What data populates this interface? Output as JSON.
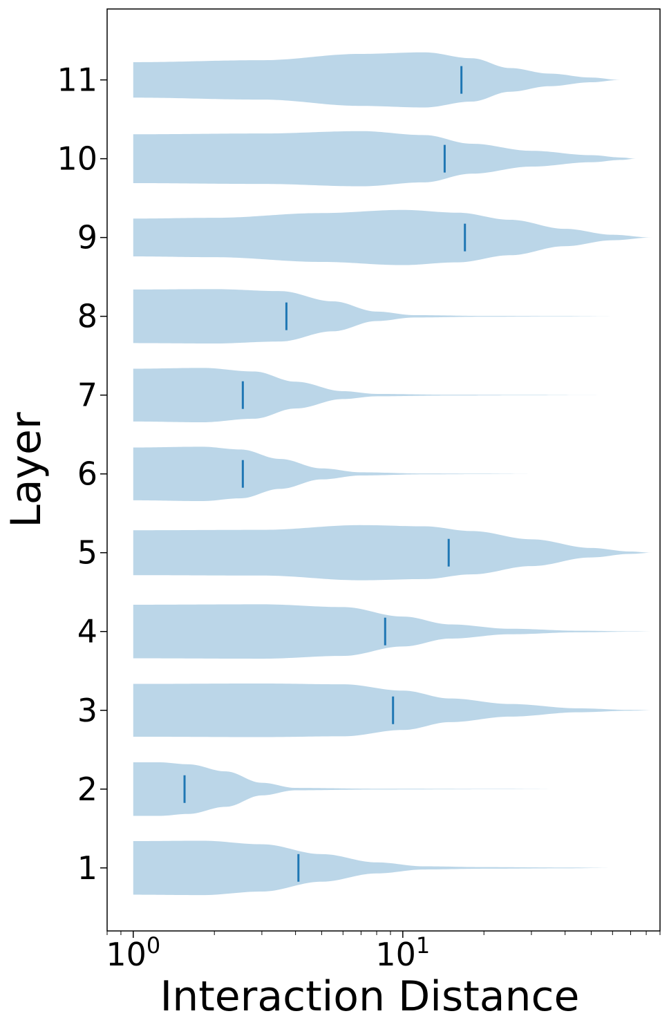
{
  "chart_data": {
    "type": "violin",
    "orientation": "horizontal",
    "xlabel": "Interaction Distance",
    "ylabel": "Layer",
    "xscale": "log",
    "xlim": [
      0.8,
      90
    ],
    "ylim": [
      0.2,
      11.9
    ],
    "x_ticks": [
      {
        "value": 1,
        "base": "10",
        "exp": "0"
      },
      {
        "value": 10,
        "base": "10",
        "exp": "1"
      }
    ],
    "y_ticks": [
      1,
      2,
      3,
      4,
      5,
      6,
      7,
      8,
      9,
      10,
      11
    ],
    "violin_color": "#1f77b4",
    "violin_opacity": 0.3,
    "median_color": "#1f77b4",
    "grid": false,
    "series": [
      {
        "layer": 1,
        "min": 1,
        "max": 61,
        "median": 4.1,
        "profile": [
          [
            1,
            0.68
          ],
          [
            1.8,
            0.69
          ],
          [
            3.0,
            0.6
          ],
          [
            5.0,
            0.35
          ],
          [
            8.0,
            0.14
          ],
          [
            12,
            0.04
          ],
          [
            20,
            0.02
          ],
          [
            40,
            0.01
          ],
          [
            61,
            0.0
          ]
        ]
      },
      {
        "layer": 2,
        "min": 1,
        "max": 42,
        "median": 1.55,
        "profile": [
          [
            1,
            0.68
          ],
          [
            1.25,
            0.68
          ],
          [
            1.6,
            0.63
          ],
          [
            2.2,
            0.45
          ],
          [
            3.0,
            0.16
          ],
          [
            4.0,
            0.03
          ],
          [
            8.0,
            0.01
          ],
          [
            20,
            0.005
          ],
          [
            42,
            0.0
          ]
        ]
      },
      {
        "layer": 3,
        "min": 1,
        "max": 85,
        "median": 9.2,
        "profile": [
          [
            1,
            0.67
          ],
          [
            3.0,
            0.68
          ],
          [
            6.0,
            0.66
          ],
          [
            10,
            0.5
          ],
          [
            15,
            0.3
          ],
          [
            25,
            0.16
          ],
          [
            45,
            0.05
          ],
          [
            70,
            0.01
          ],
          [
            85,
            0.0
          ]
        ]
      },
      {
        "layer": 4,
        "min": 1,
        "max": 85,
        "median": 8.6,
        "profile": [
          [
            1,
            0.68
          ],
          [
            3.0,
            0.69
          ],
          [
            6.0,
            0.62
          ],
          [
            10,
            0.38
          ],
          [
            15,
            0.18
          ],
          [
            25,
            0.07
          ],
          [
            45,
            0.02
          ],
          [
            70,
            0.005
          ],
          [
            85,
            0.0
          ]
        ]
      },
      {
        "layer": 5,
        "min": 1,
        "max": 84,
        "median": 14.8,
        "profile": [
          [
            1,
            0.57
          ],
          [
            3.0,
            0.58
          ],
          [
            7.0,
            0.7
          ],
          [
            12,
            0.67
          ],
          [
            18,
            0.55
          ],
          [
            30,
            0.34
          ],
          [
            50,
            0.12
          ],
          [
            70,
            0.03
          ],
          [
            84,
            0.0
          ]
        ]
      },
      {
        "layer": 6,
        "min": 1,
        "max": 31,
        "median": 2.55,
        "profile": [
          [
            1,
            0.67
          ],
          [
            1.8,
            0.69
          ],
          [
            2.5,
            0.62
          ],
          [
            3.5,
            0.38
          ],
          [
            5.0,
            0.14
          ],
          [
            7.0,
            0.04
          ],
          [
            12,
            0.01
          ],
          [
            20,
            0.005
          ],
          [
            31,
            0.0
          ]
        ]
      },
      {
        "layer": 7,
        "min": 1,
        "max": 53,
        "median": 2.55,
        "profile": [
          [
            1,
            0.67
          ],
          [
            1.8,
            0.69
          ],
          [
            2.8,
            0.6
          ],
          [
            4.0,
            0.34
          ],
          [
            6.0,
            0.1
          ],
          [
            8.0,
            0.03
          ],
          [
            15,
            0.01
          ],
          [
            30,
            0.005
          ],
          [
            53,
            0.0
          ]
        ]
      },
      {
        "layer": 8,
        "min": 1,
        "max": 62,
        "median": 3.7,
        "profile": [
          [
            1,
            0.68
          ],
          [
            2.0,
            0.69
          ],
          [
            3.5,
            0.64
          ],
          [
            5.5,
            0.38
          ],
          [
            8.0,
            0.12
          ],
          [
            11,
            0.03
          ],
          [
            20,
            0.01
          ],
          [
            40,
            0.005
          ],
          [
            62,
            0.0
          ]
        ]
      },
      {
        "layer": 9,
        "min": 1,
        "max": 84,
        "median": 17.0,
        "profile": [
          [
            1,
            0.48
          ],
          [
            2.0,
            0.5
          ],
          [
            5.0,
            0.62
          ],
          [
            10,
            0.7
          ],
          [
            16,
            0.63
          ],
          [
            25,
            0.45
          ],
          [
            40,
            0.22
          ],
          [
            60,
            0.07
          ],
          [
            84,
            0.0
          ]
        ]
      },
      {
        "layer": 10,
        "min": 1,
        "max": 73,
        "median": 14.3,
        "profile": [
          [
            1,
            0.62
          ],
          [
            3.0,
            0.64
          ],
          [
            7.0,
            0.7
          ],
          [
            12,
            0.6
          ],
          [
            18,
            0.38
          ],
          [
            30,
            0.2
          ],
          [
            50,
            0.09
          ],
          [
            65,
            0.03
          ],
          [
            73,
            0.0
          ]
        ]
      },
      {
        "layer": 11,
        "min": 1,
        "max": 64,
        "median": 16.5,
        "profile": [
          [
            1,
            0.45
          ],
          [
            3.0,
            0.5
          ],
          [
            7.0,
            0.66
          ],
          [
            12,
            0.7
          ],
          [
            18,
            0.55
          ],
          [
            25,
            0.3
          ],
          [
            35,
            0.16
          ],
          [
            50,
            0.06
          ],
          [
            64,
            0.0
          ]
        ]
      }
    ]
  }
}
